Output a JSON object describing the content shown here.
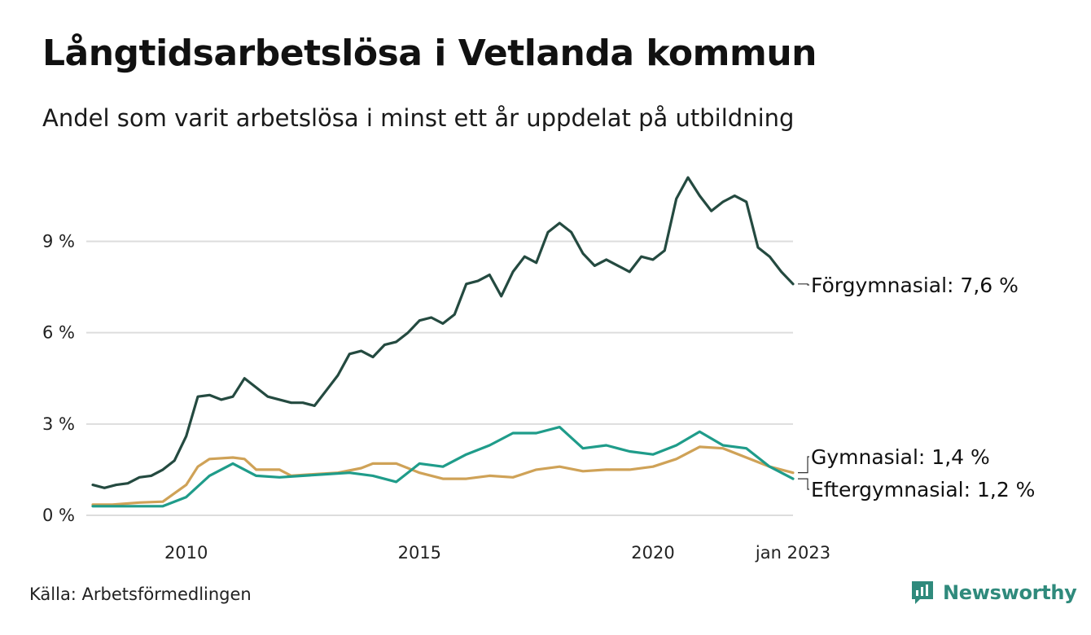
{
  "header": {
    "title": "Långtidsarbetslösa i Vetlanda kommun",
    "subtitle": "Andel som varit arbetslösa i minst ett år uppdelat på utbildning"
  },
  "footer": {
    "source": "Källa: Arbetsförmedlingen",
    "brand": "Newsworthy"
  },
  "colors": {
    "forgymnasial": "#244a40",
    "gymnasial": "#cfa257",
    "eftergymnasial": "#1f9c8a",
    "grid": "#dddddd",
    "brand": "#2f8a7c"
  },
  "chart_data": {
    "type": "line",
    "x_range": [
      "2008-01",
      "2023-01"
    ],
    "ylim": [
      0,
      11.5
    ],
    "y_ticks": [
      {
        "value": 0,
        "label": "0 %"
      },
      {
        "value": 3,
        "label": "3 %"
      },
      {
        "value": 6,
        "label": "6 %"
      },
      {
        "value": 9,
        "label": "9 %"
      }
    ],
    "x_ticks": [
      {
        "date": "2010-01",
        "label": "2010"
      },
      {
        "date": "2015-01",
        "label": "2015"
      },
      {
        "date": "2020-01",
        "label": "2020"
      },
      {
        "date": "2023-01",
        "label": "jan 2023"
      }
    ],
    "grid": true,
    "series": [
      {
        "key": "forgymnasial",
        "end_label": "Förgymnasial: 7,6 %",
        "points": [
          [
            "2008-01",
            1.0
          ],
          [
            "2008-04",
            0.9
          ],
          [
            "2008-07",
            1.0
          ],
          [
            "2008-10",
            1.05
          ],
          [
            "2009-01",
            1.25
          ],
          [
            "2009-04",
            1.3
          ],
          [
            "2009-07",
            1.5
          ],
          [
            "2009-10",
            1.8
          ],
          [
            "2010-01",
            2.6
          ],
          [
            "2010-04",
            3.9
          ],
          [
            "2010-07",
            3.95
          ],
          [
            "2010-10",
            3.8
          ],
          [
            "2011-01",
            3.9
          ],
          [
            "2011-04",
            4.5
          ],
          [
            "2011-07",
            4.2
          ],
          [
            "2011-10",
            3.9
          ],
          [
            "2012-01",
            3.8
          ],
          [
            "2012-04",
            3.7
          ],
          [
            "2012-07",
            3.7
          ],
          [
            "2012-10",
            3.6
          ],
          [
            "2013-01",
            4.1
          ],
          [
            "2013-04",
            4.6
          ],
          [
            "2013-07",
            5.3
          ],
          [
            "2013-10",
            5.4
          ],
          [
            "2014-01",
            5.2
          ],
          [
            "2014-04",
            5.6
          ],
          [
            "2014-07",
            5.7
          ],
          [
            "2014-10",
            6.0
          ],
          [
            "2015-01",
            6.4
          ],
          [
            "2015-04",
            6.5
          ],
          [
            "2015-07",
            6.3
          ],
          [
            "2015-10",
            6.6
          ],
          [
            "2016-01",
            7.6
          ],
          [
            "2016-04",
            7.7
          ],
          [
            "2016-07",
            7.9
          ],
          [
            "2016-10",
            7.2
          ],
          [
            "2017-01",
            8.0
          ],
          [
            "2017-04",
            8.5
          ],
          [
            "2017-07",
            8.3
          ],
          [
            "2017-10",
            9.3
          ],
          [
            "2018-01",
            9.6
          ],
          [
            "2018-04",
            9.3
          ],
          [
            "2018-07",
            8.6
          ],
          [
            "2018-10",
            8.2
          ],
          [
            "2019-01",
            8.4
          ],
          [
            "2019-04",
            8.2
          ],
          [
            "2019-07",
            8.0
          ],
          [
            "2019-10",
            8.5
          ],
          [
            "2020-01",
            8.4
          ],
          [
            "2020-04",
            8.7
          ],
          [
            "2020-07",
            10.4
          ],
          [
            "2020-10",
            11.1
          ],
          [
            "2021-01",
            10.5
          ],
          [
            "2021-04",
            10.0
          ],
          [
            "2021-07",
            10.3
          ],
          [
            "2021-10",
            10.5
          ],
          [
            "2022-01",
            10.3
          ],
          [
            "2022-04",
            8.8
          ],
          [
            "2022-07",
            8.5
          ],
          [
            "2022-10",
            8.0
          ],
          [
            "2023-01",
            7.6
          ]
        ]
      },
      {
        "key": "gymnasial",
        "end_label": "Gymnasial: 1,4 %",
        "points": [
          [
            "2008-01",
            0.35
          ],
          [
            "2008-06",
            0.35
          ],
          [
            "2009-01",
            0.42
          ],
          [
            "2009-07",
            0.45
          ],
          [
            "2010-01",
            1.0
          ],
          [
            "2010-04",
            1.6
          ],
          [
            "2010-07",
            1.85
          ],
          [
            "2011-01",
            1.9
          ],
          [
            "2011-04",
            1.85
          ],
          [
            "2011-07",
            1.5
          ],
          [
            "2012-01",
            1.5
          ],
          [
            "2012-04",
            1.3
          ],
          [
            "2012-10",
            1.35
          ],
          [
            "2013-04",
            1.4
          ],
          [
            "2013-10",
            1.55
          ],
          [
            "2014-01",
            1.7
          ],
          [
            "2014-07",
            1.7
          ],
          [
            "2015-01",
            1.4
          ],
          [
            "2015-07",
            1.2
          ],
          [
            "2016-01",
            1.2
          ],
          [
            "2016-07",
            1.3
          ],
          [
            "2017-01",
            1.25
          ],
          [
            "2017-07",
            1.5
          ],
          [
            "2018-01",
            1.6
          ],
          [
            "2018-07",
            1.45
          ],
          [
            "2019-01",
            1.5
          ],
          [
            "2019-07",
            1.5
          ],
          [
            "2020-01",
            1.6
          ],
          [
            "2020-07",
            1.85
          ],
          [
            "2021-01",
            2.25
          ],
          [
            "2021-07",
            2.2
          ],
          [
            "2022-01",
            1.9
          ],
          [
            "2022-07",
            1.6
          ],
          [
            "2023-01",
            1.4
          ]
        ]
      },
      {
        "key": "eftergymnasial",
        "end_label": "Eftergymnasial: 1,2 %",
        "points": [
          [
            "2008-01",
            0.3
          ],
          [
            "2008-07",
            0.3
          ],
          [
            "2009-01",
            0.3
          ],
          [
            "2009-07",
            0.3
          ],
          [
            "2010-01",
            0.6
          ],
          [
            "2010-07",
            1.3
          ],
          [
            "2011-01",
            1.7
          ],
          [
            "2011-07",
            1.3
          ],
          [
            "2012-01",
            1.25
          ],
          [
            "2012-07",
            1.3
          ],
          [
            "2013-01",
            1.35
          ],
          [
            "2013-07",
            1.4
          ],
          [
            "2014-01",
            1.3
          ],
          [
            "2014-07",
            1.1
          ],
          [
            "2015-01",
            1.7
          ],
          [
            "2015-07",
            1.6
          ],
          [
            "2016-01",
            2.0
          ],
          [
            "2016-07",
            2.3
          ],
          [
            "2017-01",
            2.7
          ],
          [
            "2017-07",
            2.7
          ],
          [
            "2018-01",
            2.9
          ],
          [
            "2018-07",
            2.2
          ],
          [
            "2019-01",
            2.3
          ],
          [
            "2019-07",
            2.1
          ],
          [
            "2020-01",
            2.0
          ],
          [
            "2020-07",
            2.3
          ],
          [
            "2021-01",
            2.75
          ],
          [
            "2021-07",
            2.3
          ],
          [
            "2022-01",
            2.2
          ],
          [
            "2022-07",
            1.6
          ],
          [
            "2023-01",
            1.2
          ]
        ]
      }
    ]
  }
}
